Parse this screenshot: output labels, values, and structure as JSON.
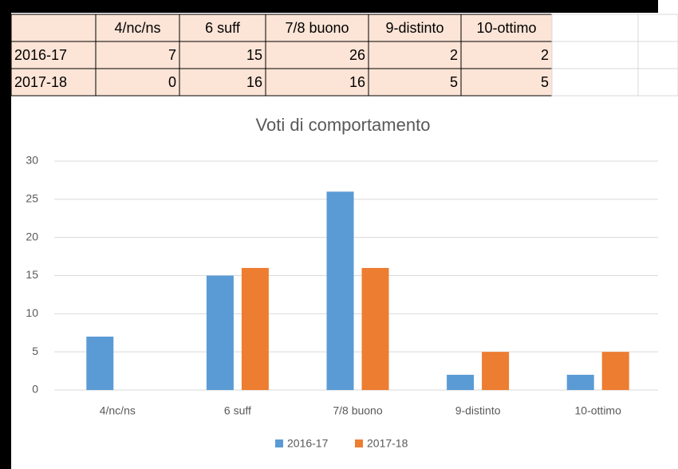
{
  "table": {
    "columns": [
      "4/nc/ns",
      "6 suff",
      "7/8 buono",
      "9-distinto",
      "10-ottimo"
    ],
    "rows": [
      {
        "label": "2016-17",
        "values": [
          7,
          15,
          26,
          2,
          2
        ]
      },
      {
        "label": "2017-18",
        "values": [
          0,
          16,
          16,
          5,
          5
        ]
      }
    ]
  },
  "chart_data": {
    "type": "bar",
    "title": "Voti di comportamento",
    "categories": [
      "4/nc/ns",
      "6 suff",
      "7/8 buono",
      "9-distinto",
      "10-ottimo"
    ],
    "series": [
      {
        "name": "2016-17",
        "color": "#5b9bd5",
        "values": [
          7,
          15,
          26,
          2,
          2
        ]
      },
      {
        "name": "2017-18",
        "color": "#ed7d31",
        "values": [
          0,
          16,
          16,
          5,
          5
        ]
      }
    ],
    "ylim": [
      0,
      30
    ],
    "yticks": [
      0,
      5,
      10,
      15,
      20,
      25,
      30
    ],
    "grid": true,
    "legend": "bottom"
  }
}
